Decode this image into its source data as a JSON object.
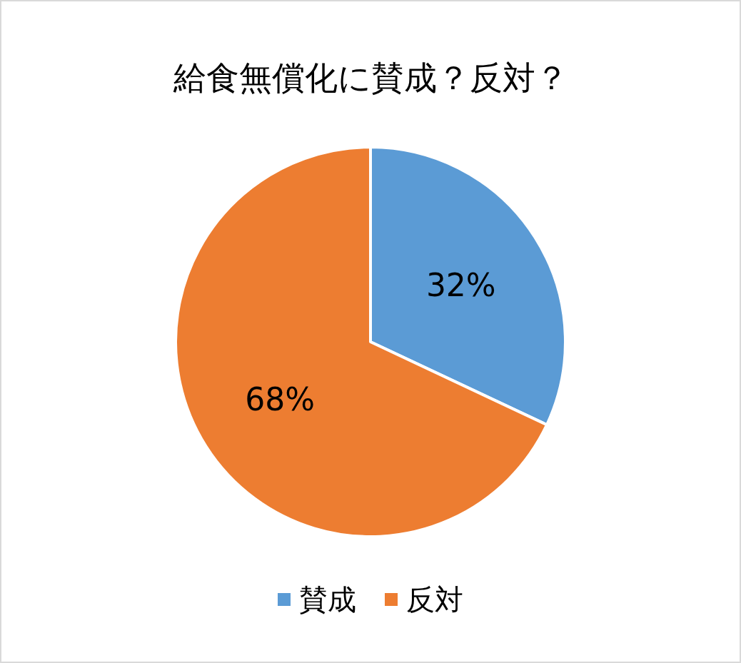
{
  "chart_data": {
    "type": "pie",
    "title": "給食無償化に賛成？反対？",
    "categories": [
      "賛成",
      "反対"
    ],
    "values": [
      32,
      68
    ],
    "value_labels": [
      "32%",
      "68%"
    ],
    "colors": [
      "#5b9bd5",
      "#ed7d31"
    ],
    "legend": "bottom"
  }
}
